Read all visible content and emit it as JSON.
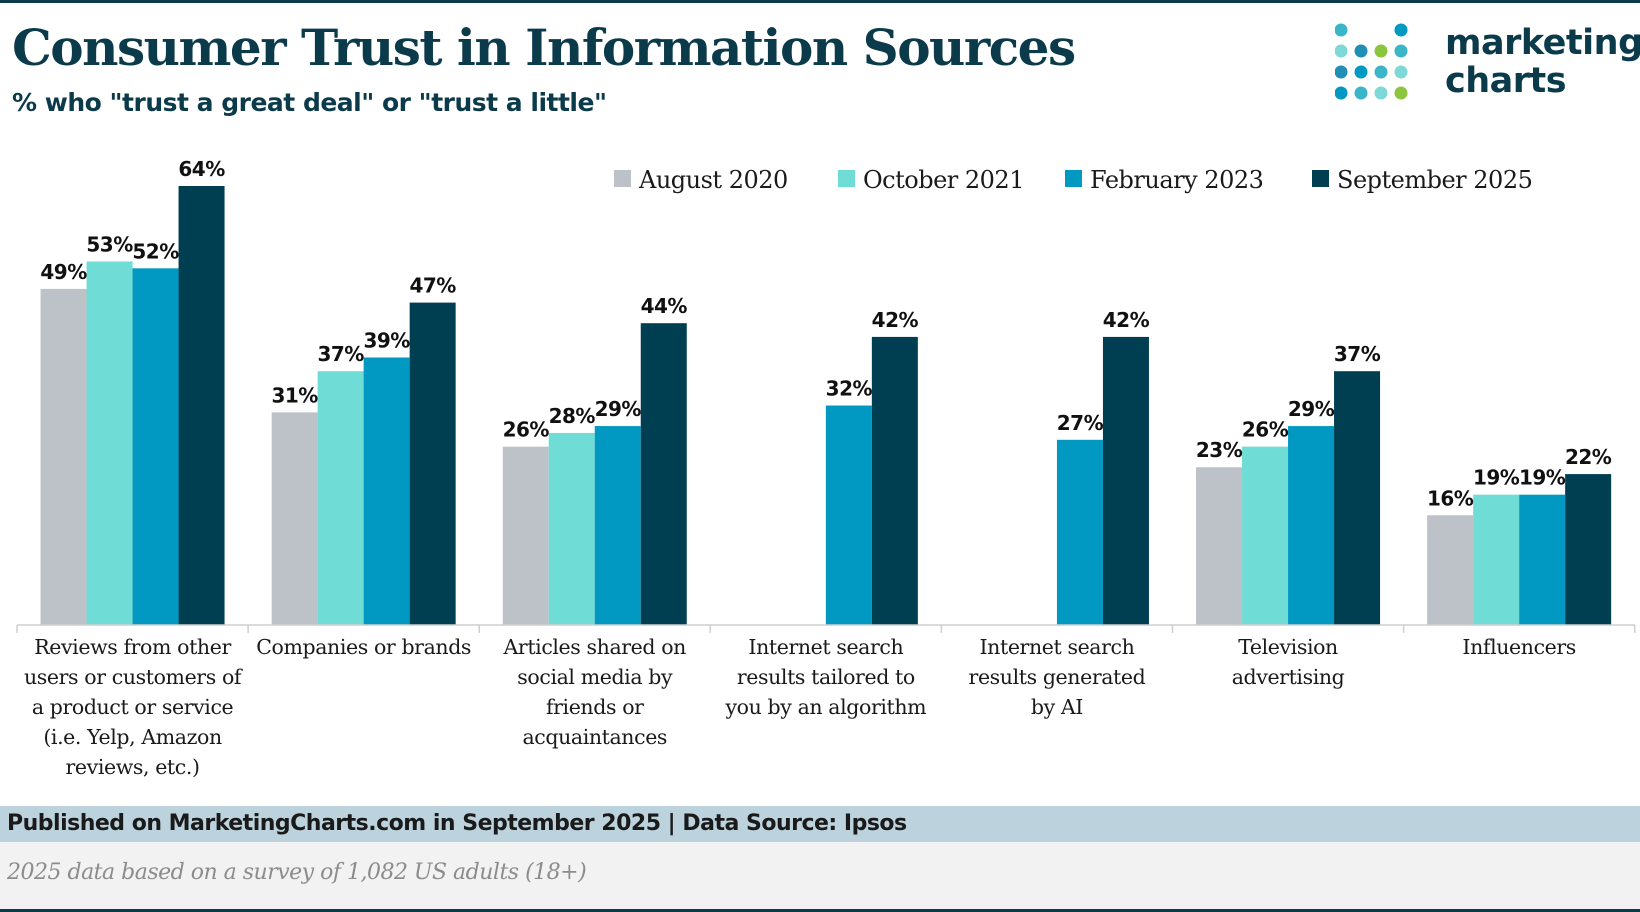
{
  "header": {
    "title": "Consumer Trust in Information Sources",
    "subtitle": "% who \"trust a great deal\" or \"trust a little\""
  },
  "logo": {
    "line1": "marketing",
    "line2": "charts"
  },
  "colors": {
    "title": "#0b3a4a",
    "series": [
      "#bcc2c8",
      "#6fdcd5",
      "#0198c2",
      "#003e52"
    ],
    "axis": "#cfcfcf",
    "footer_bg": "#bcd3dd",
    "note_bg": "#f2f2f2"
  },
  "chart_data": {
    "type": "bar",
    "title": "Consumer Trust in Information Sources",
    "subtitle": "% who \"trust a great deal\" or \"trust a little\"",
    "xlabel": "",
    "ylabel": "",
    "ylim": [
      0,
      70
    ],
    "grid": false,
    "legend_position": "top-right",
    "value_suffix": "%",
    "categories": [
      "Reviews from other users or customers of a product or service (i.e. Yelp, Amazon reviews, etc.)",
      "Companies or brands",
      "Articles shared on social media by friends or acquaintances",
      "Internet search results tailored to you by an algorithm",
      "Internet search results generated by AI",
      "Television advertising",
      "Influencers"
    ],
    "category_lines": [
      [
        "Reviews from other",
        "users or customers of",
        "a product or service",
        "(i.e. Yelp, Amazon",
        "reviews, etc.)"
      ],
      [
        "Companies or brands"
      ],
      [
        "Articles shared on",
        "social media by",
        "friends or",
        "acquaintances"
      ],
      [
        "Internet search",
        "results tailored to",
        "you by an algorithm"
      ],
      [
        "Internet search",
        "results generated",
        "by AI"
      ],
      [
        "Television",
        "advertising"
      ],
      [
        "Influencers"
      ]
    ],
    "series": [
      {
        "name": "August 2020",
        "values": [
          49,
          31,
          26,
          null,
          null,
          23,
          16
        ]
      },
      {
        "name": "October 2021",
        "values": [
          53,
          37,
          28,
          null,
          null,
          26,
          19
        ]
      },
      {
        "name": "February 2023",
        "values": [
          52,
          39,
          29,
          32,
          27,
          29,
          19
        ]
      },
      {
        "name": "September 2025",
        "values": [
          64,
          47,
          44,
          42,
          42,
          37,
          22
        ]
      }
    ]
  },
  "footer": {
    "published": "Published on MarketingCharts.com in September 2025 | Data Source: Ipsos",
    "note": "2025 data based on a survey of 1,082 US adults (18+)"
  }
}
